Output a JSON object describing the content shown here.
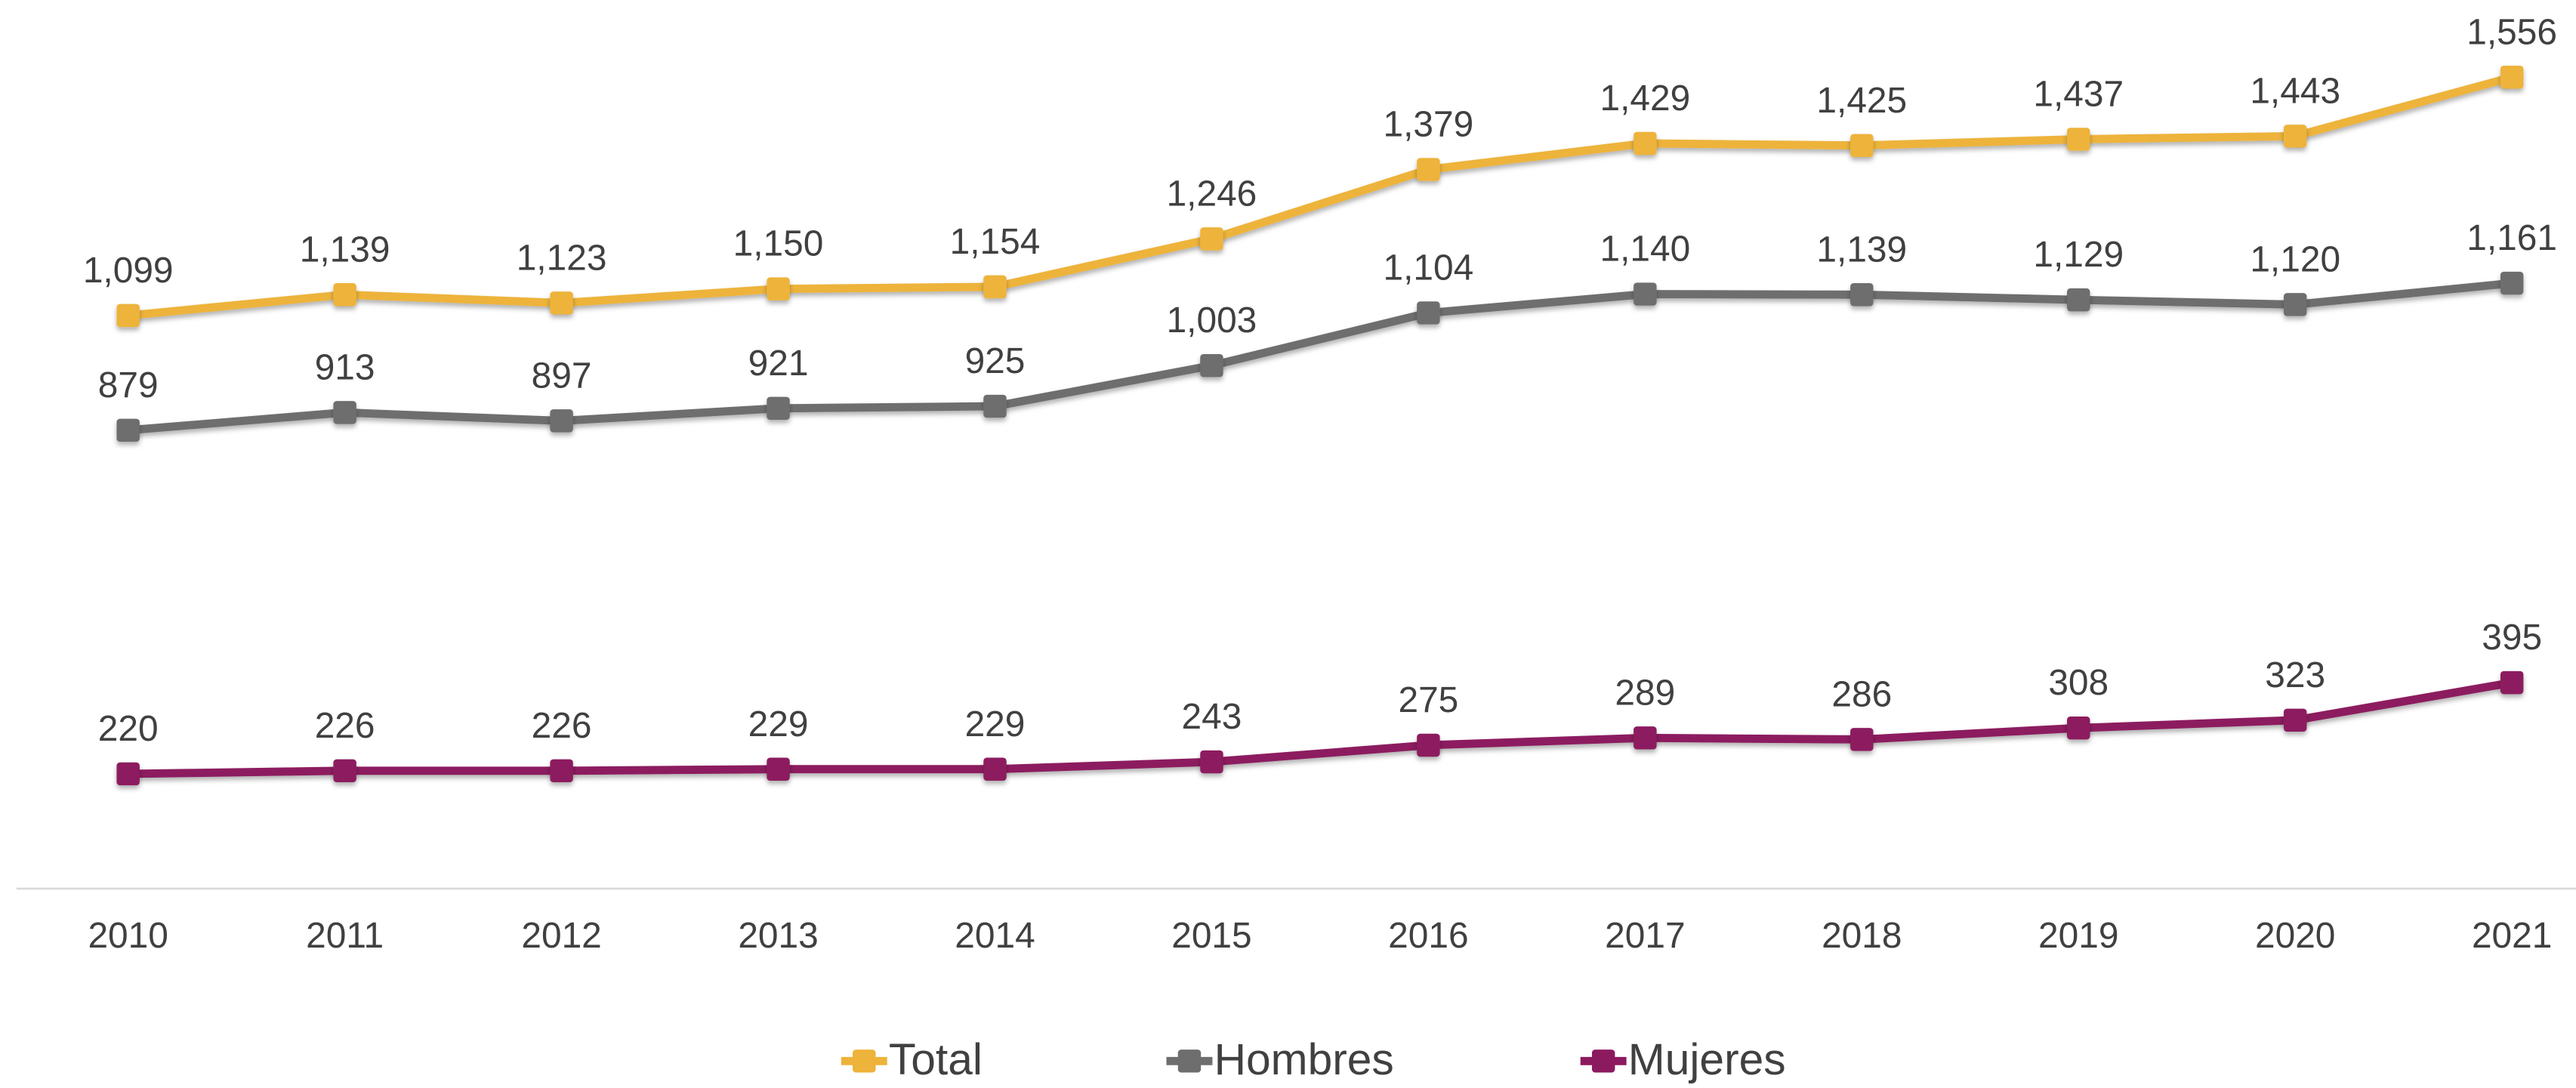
{
  "chart_data": {
    "type": "line",
    "categories": [
      "2010",
      "2011",
      "2012",
      "2013",
      "2014",
      "2015",
      "2016",
      "2017",
      "2018",
      "2019",
      "2020",
      "2021"
    ],
    "series": [
      {
        "name": "Total",
        "color": "#edb33a",
        "values": [
          1099,
          1139,
          1123,
          1150,
          1154,
          1246,
          1379,
          1429,
          1425,
          1437,
          1443,
          1556
        ],
        "value_labels": [
          "1,099",
          "1,139",
          "1,123",
          "1,150",
          "1,154",
          "1,246",
          "1,379",
          "1,429",
          "1,425",
          "1,437",
          "1,443",
          "1,556"
        ]
      },
      {
        "name": "Hombres",
        "color": "#6e6e6e",
        "values": [
          879,
          913,
          897,
          921,
          925,
          1003,
          1104,
          1140,
          1139,
          1129,
          1120,
          1161
        ],
        "value_labels": [
          "879",
          "913",
          "897",
          "921",
          "925",
          "1,003",
          "1,104",
          "1,140",
          "1,139",
          "1,129",
          "1,120",
          "1,161"
        ]
      },
      {
        "name": "Mujeres",
        "color": "#8c1a5f",
        "values": [
          220,
          226,
          226,
          229,
          229,
          243,
          275,
          289,
          286,
          308,
          323,
          395
        ],
        "value_labels": [
          "220",
          "226",
          "226",
          "229",
          "229",
          "243",
          "275",
          "289",
          "286",
          "308",
          "323",
          "395"
        ]
      }
    ],
    "legend": "bottom"
  }
}
